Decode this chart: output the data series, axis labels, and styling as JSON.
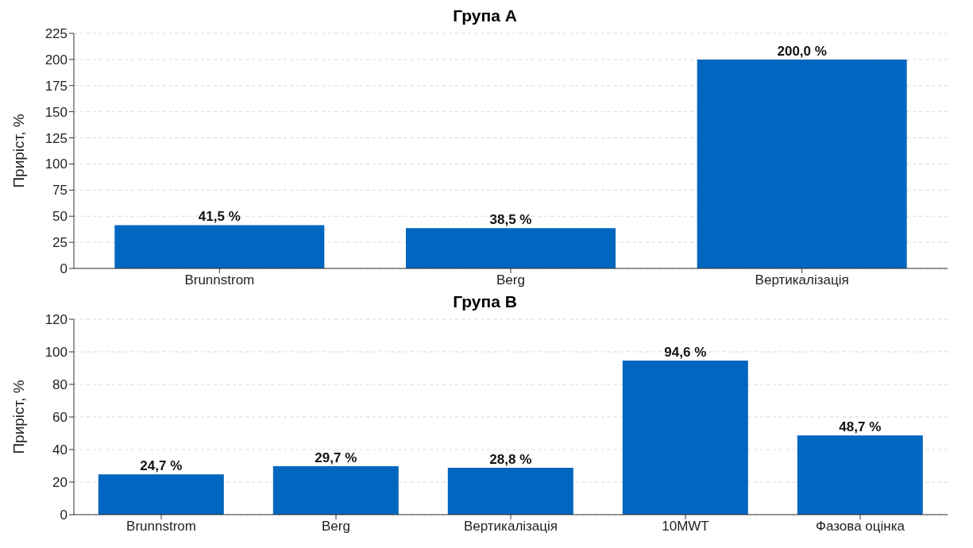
{
  "chart_data": [
    {
      "type": "bar",
      "title": "Група A",
      "ylabel": "Приріст, %",
      "categories": [
        "Brunnstrom",
        "Berg",
        "Вертикалізація"
      ],
      "values": [
        41.5,
        38.5,
        200.0
      ],
      "value_labels": [
        "41,5 %",
        "38,5 %",
        "200,0 %"
      ],
      "color": "#0066bf",
      "ylim": [
        0,
        225
      ],
      "yticks": [
        0,
        25,
        50,
        75,
        100,
        125,
        150,
        175,
        200,
        225
      ],
      "grid": "y"
    },
    {
      "type": "bar",
      "title": "Група B",
      "ylabel": "Приріст, %",
      "categories": [
        "Brunnstrom",
        "Berg",
        "Вертикалізація",
        "10MWT",
        "Фазова оцінка"
      ],
      "values": [
        24.7,
        29.7,
        28.8,
        94.6,
        48.7
      ],
      "value_labels": [
        "24,7 %",
        "29,7 %",
        "28,8 %",
        "94,6 %",
        "48,7 %"
      ],
      "color": "#0066bf",
      "ylim": [
        0,
        120
      ],
      "yticks": [
        0,
        20,
        40,
        60,
        80,
        100,
        120
      ],
      "grid": "y"
    }
  ]
}
